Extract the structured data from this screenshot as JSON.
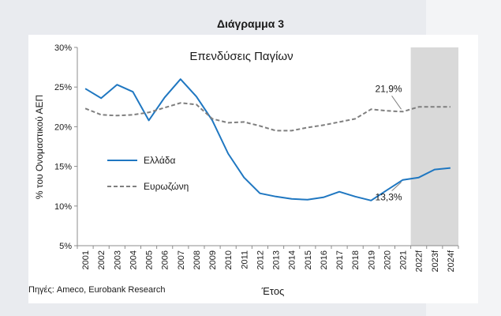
{
  "figure_title": "Διάγραμμα 3",
  "source_note": "Πηγές: Ameco, Eurobank Research",
  "chart_data": {
    "type": "line",
    "title": "Επενδύσεις Παγίων",
    "xlabel": "Έτος",
    "ylabel": "% του Ονομαστικού ΑΕΠ",
    "categories": [
      "2001",
      "2002",
      "2003",
      "2004",
      "2005",
      "2006",
      "2007",
      "2008",
      "2009",
      "2010",
      "2011",
      "2012",
      "2013",
      "2014",
      "2015",
      "2016",
      "2017",
      "2018",
      "2019",
      "2020",
      "2021",
      "2022f",
      "2023f",
      "2024f"
    ],
    "ylim": [
      5,
      30
    ],
    "yticks": [
      5,
      10,
      15,
      20,
      25,
      30
    ],
    "ytick_labels": [
      "5%",
      "10%",
      "15%",
      "20%",
      "25%",
      "30%"
    ],
    "forecast_shading": {
      "from": "2022f",
      "to": "2024f",
      "color": "#d9d9d9"
    },
    "grid": false,
    "legend_position": "left",
    "series": [
      {
        "name": "Ελλάδα",
        "color": "#1f77c1",
        "style": "solid",
        "values": [
          24.8,
          23.6,
          25.3,
          24.4,
          20.8,
          23.7,
          26.0,
          23.8,
          20.8,
          16.6,
          13.6,
          11.6,
          11.2,
          10.9,
          10.8,
          11.1,
          11.8,
          11.2,
          10.7,
          12.0,
          13.3,
          13.6,
          14.6,
          14.8
        ]
      },
      {
        "name": "Ευρωζώνη",
        "color": "#7f7f7f",
        "style": "dashed",
        "values": [
          22.3,
          21.5,
          21.4,
          21.5,
          21.8,
          22.4,
          23.0,
          22.8,
          21.0,
          20.5,
          20.6,
          20.1,
          19.5,
          19.5,
          19.9,
          20.2,
          20.6,
          21.0,
          22.2,
          22.0,
          21.9,
          22.5,
          22.5,
          22.5
        ]
      }
    ],
    "annotations": [
      {
        "text": "21,9%",
        "series": "Ευρωζώνη",
        "category": "2021"
      },
      {
        "text": "13,3%",
        "series": "Ελλάδα",
        "category": "2021"
      }
    ]
  }
}
